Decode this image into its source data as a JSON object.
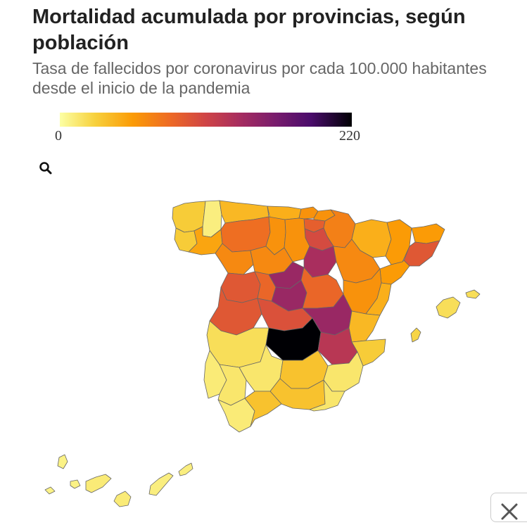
{
  "header": {
    "title": "Mortalidad acumulada por provincias, según población",
    "subtitle": "Tasa de fallecidos por coronavirus por cada 100.000 habitantes desde el inicio de la pandemia"
  },
  "legend": {
    "min_label": "0",
    "max_label": "220",
    "colors": [
      "#fcffa4",
      "#f7d13d",
      "#fb9b06",
      "#ed6925",
      "#cf4446",
      "#a52c60",
      "#781c6d",
      "#4a0c6b",
      "#000004"
    ]
  },
  "icons": {
    "zoom": "search-icon",
    "close": "close-icon"
  },
  "map": {
    "regions": [
      {
        "id": "A_Coruna",
        "value": 30
      },
      {
        "id": "Lugo",
        "value": 10
      },
      {
        "id": "Pontevedra",
        "value": 30
      },
      {
        "id": "Ourense",
        "value": 50
      },
      {
        "id": "Asturias",
        "value": 40
      },
      {
        "id": "Cantabria",
        "value": 45
      },
      {
        "id": "Bizkaia",
        "value": 60
      },
      {
        "id": "Gipuzkoa",
        "value": 60
      },
      {
        "id": "Araba",
        "value": 90
      },
      {
        "id": "Navarra",
        "value": 70
      },
      {
        "id": "La_Rioja",
        "value": 105
      },
      {
        "id": "Leon",
        "value": 80
      },
      {
        "id": "Palencia",
        "value": 60
      },
      {
        "id": "Burgos",
        "value": 60
      },
      {
        "id": "Zamora",
        "value": 65
      },
      {
        "id": "Valladolid",
        "value": 65
      },
      {
        "id": "Soria",
        "value": 135
      },
      {
        "id": "Huesca",
        "value": 45
      },
      {
        "id": "Zaragoza",
        "value": 65
      },
      {
        "id": "Lleida",
        "value": 55
      },
      {
        "id": "Girona",
        "value": 55
      },
      {
        "id": "Barcelona",
        "value": 95
      },
      {
        "id": "Tarragona",
        "value": 55
      },
      {
        "id": "Salamanca",
        "value": 95
      },
      {
        "id": "Avila",
        "value": 85
      },
      {
        "id": "Segovia",
        "value": 145
      },
      {
        "id": "Madrid",
        "value": 145
      },
      {
        "id": "Guadalajara",
        "value": 85
      },
      {
        "id": "Teruel",
        "value": 60
      },
      {
        "id": "Castellon",
        "value": 45
      },
      {
        "id": "Caceres",
        "value": 95
      },
      {
        "id": "Toledo",
        "value": 100
      },
      {
        "id": "Cuenca",
        "value": 145
      },
      {
        "id": "Valencia",
        "value": 40
      },
      {
        "id": "Badajoz",
        "value": 20
      },
      {
        "id": "Ciudad_Real",
        "value": 220
      },
      {
        "id": "Albacete",
        "value": 125
      },
      {
        "id": "Alicante",
        "value": 30
      },
      {
        "id": "Huelva",
        "value": 12
      },
      {
        "id": "Sevilla",
        "value": 15
      },
      {
        "id": "Cordoba",
        "value": 15
      },
      {
        "id": "Jaen",
        "value": 35
      },
      {
        "id": "Granada",
        "value": 35
      },
      {
        "id": "Murcia",
        "value": 15
      },
      {
        "id": "Almeria",
        "value": 15
      },
      {
        "id": "Cadiz",
        "value": 12
      },
      {
        "id": "Malaga",
        "value": 35
      },
      {
        "id": "Mallorca",
        "value": 20
      },
      {
        "id": "Menorca",
        "value": 20
      },
      {
        "id": "Ibiza",
        "value": 25
      },
      {
        "id": "La_Palma",
        "value": 8
      },
      {
        "id": "Tenerife",
        "value": 12
      },
      {
        "id": "La_Gomera",
        "value": 8
      },
      {
        "id": "El_Hierro",
        "value": 8
      },
      {
        "id": "Gran_Canaria",
        "value": 12
      },
      {
        "id": "Fuerteventura",
        "value": 10
      },
      {
        "id": "Lanzarote",
        "value": 10
      }
    ]
  }
}
